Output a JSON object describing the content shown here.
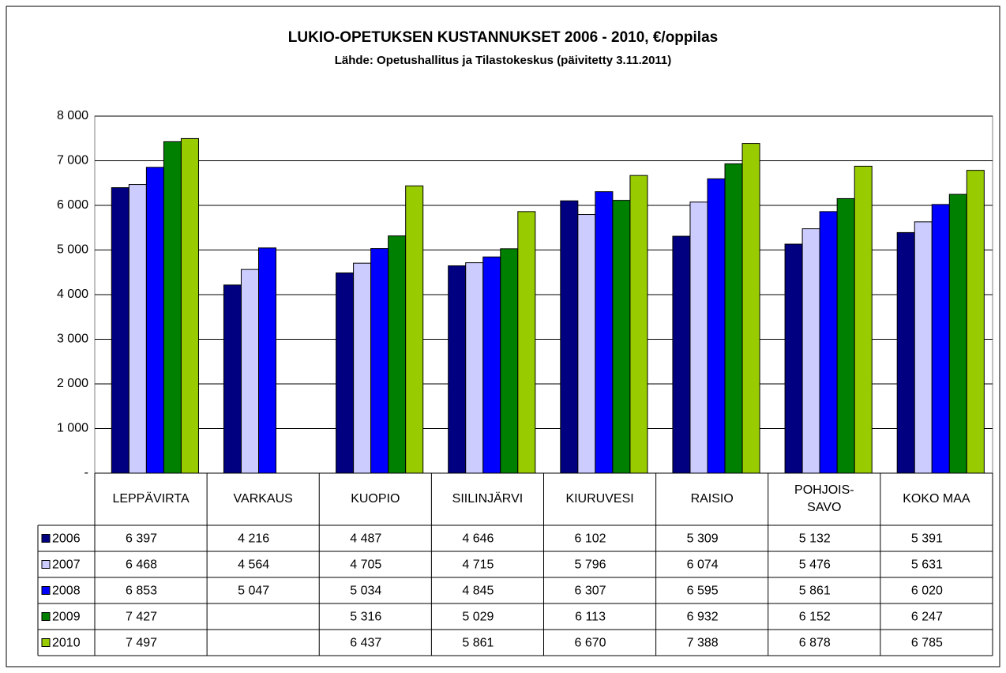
{
  "chart_data": {
    "type": "bar",
    "title": "LUKIO-OPETUKSEN KUSTANNUKSET 2006 - 2010, €/oppilas",
    "subtitle": "Lähde: Opetushallitus ja Tilastokeskus (päivitetty 3.11.2011)",
    "categories": [
      "LEPPÄVIRTA",
      "VARKAUS",
      "KUOPIO",
      "SIILINJÄRVI",
      "KIURUVESI",
      "RAISIO",
      "POHJOIS-\nSAVO",
      "KOKO MAA"
    ],
    "series": [
      {
        "name": "2006",
        "color": "#000080",
        "values": [
          6397,
          4216,
          4487,
          4646,
          6102,
          5309,
          5132,
          5391
        ],
        "value_labels": [
          "6 397",
          "4 216",
          "4 487",
          "4 646",
          "6 102",
          "5 309",
          "5 132",
          "5 391"
        ]
      },
      {
        "name": "2007",
        "color": "#ccccff",
        "values": [
          6468,
          4564,
          4705,
          4715,
          5796,
          6074,
          5476,
          5631
        ],
        "value_labels": [
          "6 468",
          "4 564",
          "4 705",
          "4 715",
          "5 796",
          "6 074",
          "5 476",
          "5 631"
        ]
      },
      {
        "name": "2008",
        "color": "#0000ff",
        "values": [
          6853,
          5047,
          5034,
          4845,
          6307,
          6595,
          5861,
          6020
        ],
        "value_labels": [
          "6 853",
          "5 047",
          "5 034",
          "4 845",
          "6 307",
          "6 595",
          "5 861",
          "6 020"
        ]
      },
      {
        "name": "2009",
        "color": "#008000",
        "values": [
          7427,
          null,
          5316,
          5029,
          6113,
          6932,
          6152,
          6247
        ],
        "value_labels": [
          "7 427",
          null,
          "5 316",
          "5 029",
          "6 113",
          "6 932",
          "6 152",
          "6 247"
        ]
      },
      {
        "name": "2010",
        "color": "#99cc00",
        "values": [
          7497,
          null,
          6437,
          5861,
          6670,
          7388,
          6878,
          6785
        ],
        "value_labels": [
          "7 497",
          null,
          "6 437",
          "5 861",
          "6 670",
          "7 388",
          "6 878",
          "6 785"
        ]
      }
    ],
    "ylim": [
      0,
      8000
    ],
    "yticks": [
      {
        "value": 0,
        "label": "-"
      },
      {
        "value": 1000,
        "label": "1 000"
      },
      {
        "value": 2000,
        "label": "2 000"
      },
      {
        "value": 3000,
        "label": "3 000"
      },
      {
        "value": 4000,
        "label": "4 000"
      },
      {
        "value": 5000,
        "label": "5 000"
      },
      {
        "value": 6000,
        "label": "6 000"
      },
      {
        "value": 7000,
        "label": "7 000"
      },
      {
        "value": 8000,
        "label": "8 000"
      }
    ],
    "grid": true
  }
}
